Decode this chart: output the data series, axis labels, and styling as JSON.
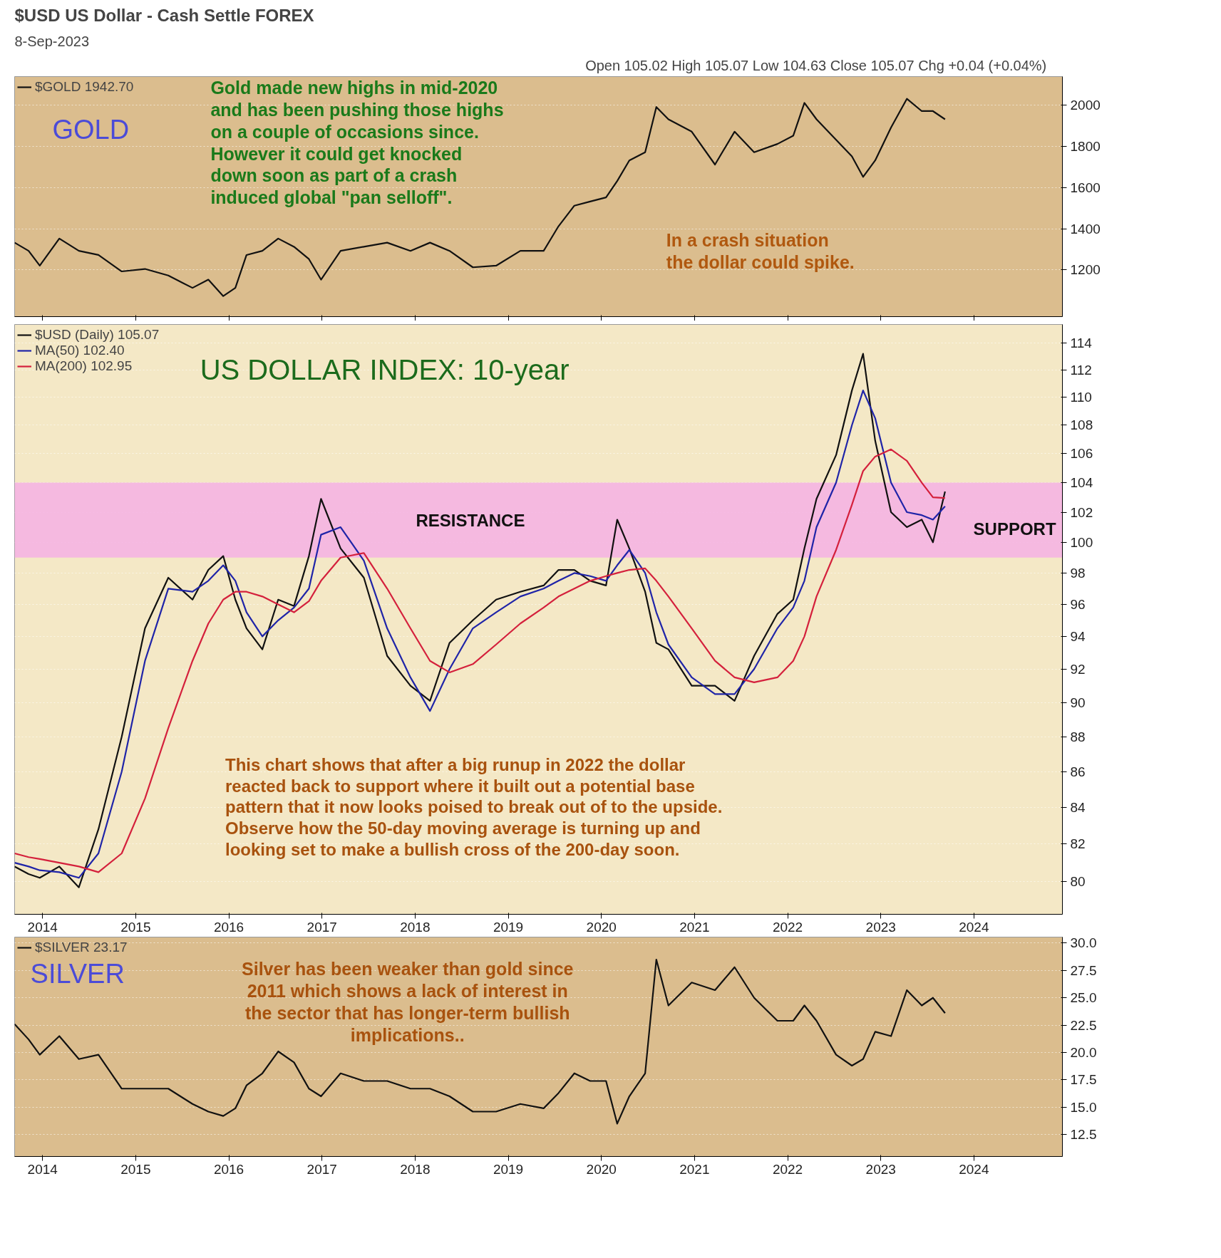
{
  "chart_data": [
    {
      "type": "line",
      "title": "$USD US Dollar - Cash Settle FOREX",
      "subtitle": "8-Sep-2023",
      "annotations": [
        "Open 105.02  High 105.07  Low 104.63  Close 105.07  Chg +0.04 (+0.04%)",
        "GOLD",
        "Gold made new highs in mid-2020\nand has been pushing those highs\non a couple of occasions since.\nHowever it could get knocked\ndown soon as part of a crash\ninduced global \"pan selloff\".",
        "In a crash situation\nthe dollar could spike."
      ],
      "x": [
        2013.7,
        2013.85,
        2013.97,
        2014.18,
        2014.39,
        2014.6,
        2014.85,
        2015.1,
        2015.35,
        2015.61,
        2015.78,
        2015.94,
        2016.07,
        2016.19,
        2016.36,
        2016.53,
        2016.7,
        2016.86,
        2016.99,
        2017.2,
        2017.45,
        2017.7,
        2017.95,
        2018.16,
        2018.37,
        2018.62,
        2018.87,
        2019.13,
        2019.38,
        2019.54,
        2019.71,
        2019.88,
        2020.05,
        2020.17,
        2020.3,
        2020.47,
        2020.59,
        2020.72,
        2020.97,
        2021.22,
        2021.43,
        2021.64,
        2021.89,
        2022.06,
        2022.18,
        2022.31,
        2022.52,
        2022.69,
        2022.81,
        2022.94,
        2023.11,
        2023.28,
        2023.44,
        2023.56,
        2023.69
      ],
      "series": [
        {
          "name": "$GOLD 1942.70",
          "color": "#111111",
          "values": [
            1332,
            1292,
            1220,
            1352,
            1292,
            1272,
            1192,
            1204,
            1172,
            1112,
            1152,
            1072,
            1112,
            1272,
            1292,
            1352,
            1312,
            1252,
            1152,
            1292,
            1312,
            1332,
            1292,
            1332,
            1292,
            1212,
            1220,
            1292,
            1292,
            1412,
            1512,
            1532,
            1552,
            1632,
            1732,
            1772,
            1992,
            1932,
            1872,
            1712,
            1872,
            1772,
            1812,
            1852,
            2012,
            1932,
            1832,
            1752,
            1652,
            1732,
            1892,
            2032,
            1972,
            1972,
            1932
          ]
        }
      ],
      "xlim": [
        2013.7,
        2024.95
      ],
      "ylim": [
        972,
        2140
      ],
      "xticks": [
        2014,
        2015,
        2016,
        2017,
        2018,
        2019,
        2020,
        2021,
        2022,
        2023,
        2024
      ],
      "yticks": [
        1200,
        1400,
        1600,
        1800,
        2000
      ],
      "tick_labels": "y",
      "legend": "top left",
      "grid": "y"
    },
    {
      "type": "line",
      "title": "US DOLLAR INDEX: 10-year",
      "annotations": [
        "This chart shows that after a big runup in 2022 the dollar\nreacted back to support where it built out a potential base\npattern that it now looks poised to break out of to the upside.\nObserve how the 50-day moving average is turning up and\nlooking set to make a bullish cross of the 200-day soon.",
        "SUPPORT"
      ],
      "x": [
        2013.7,
        2013.85,
        2013.97,
        2014.18,
        2014.39,
        2014.6,
        2014.85,
        2015.1,
        2015.35,
        2015.61,
        2015.78,
        2015.94,
        2016.07,
        2016.19,
        2016.36,
        2016.53,
        2016.7,
        2016.86,
        2016.99,
        2017.2,
        2017.45,
        2017.7,
        2017.95,
        2018.16,
        2018.37,
        2018.62,
        2018.87,
        2019.13,
        2019.38,
        2019.54,
        2019.71,
        2019.88,
        2020.05,
        2020.17,
        2020.3,
        2020.47,
        2020.59,
        2020.72,
        2020.97,
        2021.22,
        2021.43,
        2021.64,
        2021.89,
        2022.06,
        2022.18,
        2022.31,
        2022.52,
        2022.69,
        2022.81,
        2022.94,
        2023.11,
        2023.28,
        2023.44,
        2023.56,
        2023.69
      ],
      "series": [
        {
          "name": "$USD (Daily) 105.07",
          "color": "#111111",
          "values": [
            80.8,
            80.4,
            80.2,
            80.8,
            79.7,
            82.8,
            88.0,
            94.5,
            97.7,
            96.3,
            98.2,
            99.1,
            96.3,
            94.5,
            93.2,
            96.3,
            95.9,
            99.1,
            102.9,
            99.6,
            97.7,
            92.8,
            91.0,
            90.1,
            93.6,
            95.0,
            96.3,
            96.8,
            97.2,
            98.2,
            98.2,
            97.5,
            97.2,
            101.5,
            99.6,
            96.8,
            93.6,
            93.2,
            91.0,
            91.0,
            90.1,
            92.8,
            95.4,
            96.3,
            99.6,
            102.9,
            105.9,
            110.5,
            113.2,
            106.9,
            102.0,
            101.0,
            101.5,
            100.0,
            103.4
          ]
        },
        {
          "name": "MA(50) 102.40",
          "color": "#1f24a8",
          "values": [
            81.0,
            80.8,
            80.6,
            80.5,
            80.2,
            81.5,
            86.0,
            92.5,
            97.0,
            96.8,
            97.5,
            98.5,
            97.5,
            95.5,
            94.0,
            95.0,
            95.8,
            97.0,
            100.5,
            101.0,
            98.8,
            94.5,
            91.5,
            89.5,
            92.0,
            94.5,
            95.5,
            96.5,
            97.0,
            97.5,
            98.0,
            97.8,
            97.5,
            98.5,
            99.5,
            98.0,
            95.5,
            93.5,
            91.5,
            90.5,
            90.5,
            92.0,
            94.5,
            95.8,
            97.5,
            101.0,
            104.0,
            108.0,
            110.5,
            108.5,
            104.0,
            102.0,
            101.8,
            101.5,
            102.4
          ]
        },
        {
          "name": "MA(200) 102.95",
          "color": "#d4203c",
          "values": [
            81.5,
            81.3,
            81.2,
            81.0,
            80.8,
            80.5,
            81.5,
            84.5,
            88.5,
            92.5,
            94.8,
            96.3,
            96.8,
            96.8,
            96.5,
            96.0,
            95.5,
            96.2,
            97.5,
            99.0,
            99.3,
            97.0,
            94.5,
            92.5,
            91.8,
            92.3,
            93.5,
            94.8,
            95.8,
            96.5,
            97.0,
            97.5,
            97.8,
            98.0,
            98.2,
            98.3,
            97.5,
            96.5,
            94.5,
            92.5,
            91.5,
            91.2,
            91.5,
            92.5,
            94.0,
            96.5,
            99.5,
            102.5,
            104.8,
            105.8,
            106.3,
            105.5,
            104.0,
            103.0,
            102.95
          ]
        }
      ],
      "bands": [
        {
          "axis": "y",
          "from": 99,
          "to": 104,
          "label": "RESISTANCE",
          "color": "#f4b0e4"
        }
      ],
      "xlim": [
        2013.7,
        2024.95
      ],
      "ylim": [
        78.3,
        115.4
      ],
      "log": "y",
      "xticks": [
        2014,
        2015,
        2016,
        2017,
        2018,
        2019,
        2020,
        2021,
        2022,
        2023,
        2024
      ],
      "yticks": [
        80,
        82,
        84,
        86,
        88,
        90,
        92,
        94,
        96,
        98,
        100,
        102,
        104,
        106,
        108,
        110,
        112,
        114
      ],
      "legend": "top left",
      "grid": "y"
    },
    {
      "type": "line",
      "annotations": [
        "SILVER",
        "Silver has been weaker than gold since\n2011 which shows a lack of interest in\nthe sector that has longer-term bullish\nimplications.."
      ],
      "x": [
        2013.7,
        2013.85,
        2013.97,
        2014.18,
        2014.39,
        2014.6,
        2014.85,
        2015.1,
        2015.35,
        2015.61,
        2015.78,
        2015.94,
        2016.07,
        2016.19,
        2016.36,
        2016.53,
        2016.7,
        2016.86,
        2016.99,
        2017.2,
        2017.45,
        2017.7,
        2017.95,
        2018.16,
        2018.37,
        2018.62,
        2018.87,
        2019.13,
        2019.38,
        2019.54,
        2019.71,
        2019.88,
        2020.05,
        2020.17,
        2020.3,
        2020.47,
        2020.59,
        2020.72,
        2020.97,
        2021.22,
        2021.43,
        2021.64,
        2021.89,
        2022.06,
        2022.18,
        2022.31,
        2022.52,
        2022.69,
        2022.81,
        2022.94,
        2023.11,
        2023.28,
        2023.44,
        2023.56,
        2023.69
      ],
      "series": [
        {
          "name": "$SILVER 23.17",
          "color": "#111111",
          "values": [
            22.6,
            21.2,
            19.8,
            21.5,
            19.4,
            19.8,
            16.7,
            16.7,
            16.7,
            15.3,
            14.6,
            14.2,
            14.9,
            17.0,
            18.1,
            20.1,
            19.1,
            16.7,
            16.0,
            18.1,
            17.4,
            17.4,
            16.7,
            16.7,
            16.0,
            14.6,
            14.6,
            15.3,
            14.9,
            16.3,
            18.1,
            17.4,
            17.4,
            13.5,
            16.0,
            18.1,
            28.5,
            24.3,
            26.4,
            25.7,
            27.8,
            25.0,
            22.9,
            22.9,
            24.3,
            22.9,
            19.8,
            18.8,
            19.4,
            21.9,
            21.5,
            25.7,
            24.3,
            25.0,
            23.6
          ]
        }
      ],
      "xlim": [
        2013.7,
        2024.95
      ],
      "ylim": [
        10.5,
        30.55
      ],
      "xticks": [
        2014,
        2015,
        2016,
        2017,
        2018,
        2019,
        2020,
        2021,
        2022,
        2023,
        2024
      ],
      "yticks": [
        {
          "value": 12.5,
          "label": "12.5"
        },
        {
          "value": 15,
          "label": "15.0"
        },
        {
          "value": 17.5,
          "label": "17.5"
        },
        {
          "value": 20,
          "label": "20.0"
        },
        {
          "value": 22.5,
          "label": "22.5"
        },
        {
          "value": 25,
          "label": "25.0"
        },
        {
          "value": 27.5,
          "label": "27.5"
        },
        {
          "value": 30,
          "label": "30.0"
        }
      ],
      "legend": "top left",
      "grid": "y"
    }
  ]
}
